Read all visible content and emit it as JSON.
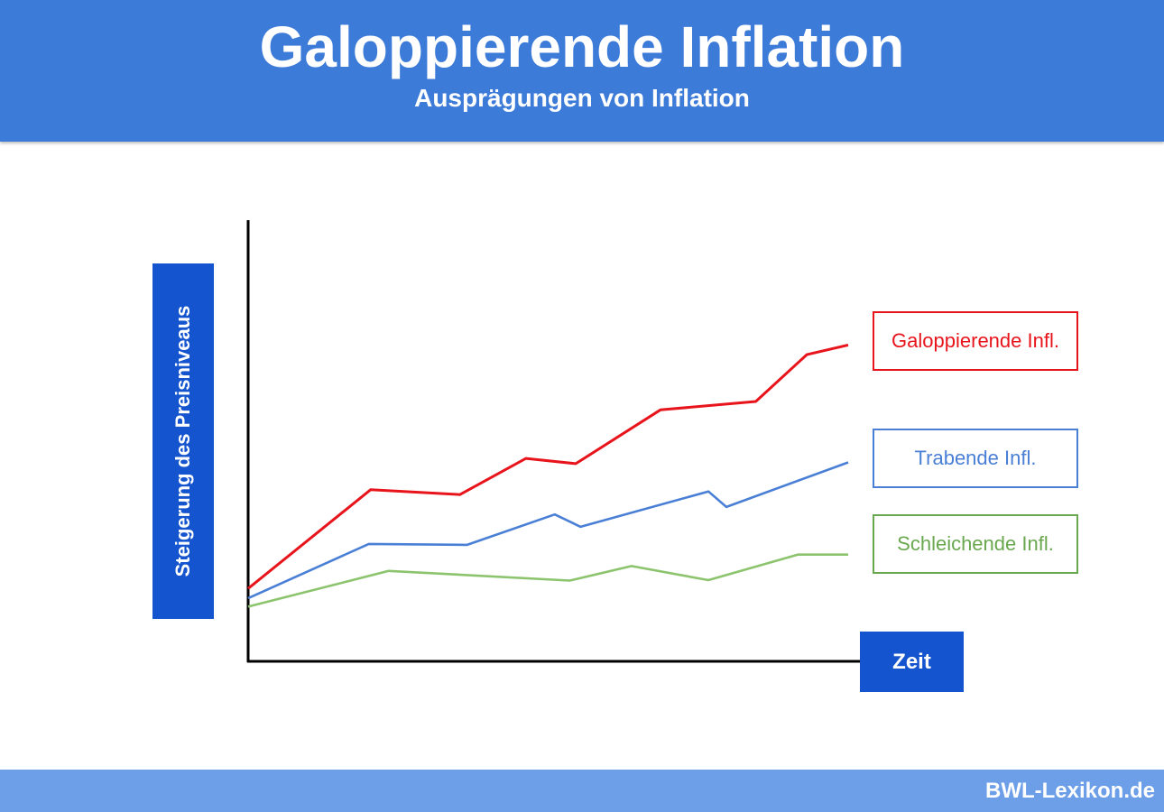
{
  "header": {
    "title": "Galoppierende Inflation",
    "subtitle": "Ausprägungen von Inflation"
  },
  "colors": {
    "header_bg": "#3d7bd9",
    "label_box_bg": "#1554cf",
    "footer_bg": "#6d9ee8",
    "galoppierend": "#e8141c",
    "trabend": "#4a7fd6",
    "schleichend": "#8cc46e",
    "legend_schleichend_border": "#6aa84f"
  },
  "chart_data": {
    "type": "line",
    "title": "Galoppierende Inflation",
    "subtitle": "Ausprägungen von Inflation",
    "xlabel": "Zeit",
    "ylabel": "Steigerung des Preisniveaus",
    "x_ticks_shown": false,
    "y_ticks_shown": false,
    "grid": false,
    "legend_position": "right",
    "xlim": [
      0,
      100
    ],
    "ylim": [
      0,
      100
    ],
    "series": [
      {
        "name": "Galoppierende Infl.",
        "color": "#e8141c",
        "x": [
          0,
          20.4,
          35.3,
          46.3,
          54.6,
          68.7,
          84.6,
          93.1,
          100
        ],
        "y": [
          16.5,
          38.9,
          37.8,
          46.0,
          44.8,
          57.0,
          58.9,
          69.5,
          71.7
        ]
      },
      {
        "name": "Trabende Infl.",
        "color": "#4a7fd6",
        "x": [
          0,
          20.1,
          36.5,
          51.1,
          55.4,
          76.7,
          79.7,
          100
        ],
        "y": [
          14.3,
          26.6,
          26.4,
          33.3,
          30.5,
          38.5,
          35.0,
          45.1
        ]
      },
      {
        "name": "Schleichende Infl.",
        "color": "#8cc46e",
        "x": [
          0,
          23.4,
          53.6,
          63.9,
          76.7,
          91.6,
          100
        ],
        "y": [
          12.4,
          20.5,
          18.3,
          21.6,
          18.4,
          24.2,
          24.2
        ]
      }
    ]
  },
  "legend": {
    "galoppierend": "Galoppierende Infl.",
    "trabend": "Trabende Infl.",
    "schleichend": "Schleichende Infl."
  },
  "footer": {
    "brand": "BWL-Lexikon.de"
  }
}
